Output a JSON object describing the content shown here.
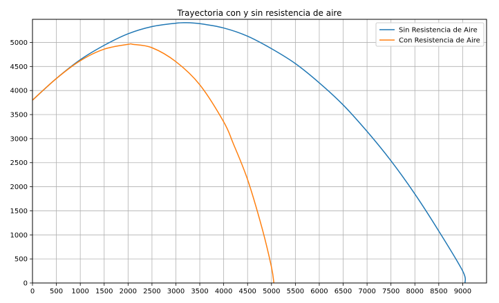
{
  "chart_data": {
    "type": "line",
    "title": "Trayectoria con y sin resistencia de aire",
    "xlabel": "",
    "ylabel": "",
    "xlim": [
      0,
      9500
    ],
    "ylim": [
      0,
      5480
    ],
    "x_ticks": [
      0,
      500,
      1000,
      1500,
      2000,
      2500,
      3000,
      3500,
      4000,
      4500,
      5000,
      5500,
      6000,
      6500,
      7000,
      7500,
      8000,
      8500,
      9000
    ],
    "y_ticks": [
      0,
      500,
      1000,
      1500,
      2000,
      2500,
      3000,
      3500,
      4000,
      4500,
      5000
    ],
    "grid": true,
    "legend_position": "upper right",
    "series": [
      {
        "name": "Sin Resistencia de Aire",
        "color": "#1f77b4",
        "x": [
          0,
          500,
          1000,
          1500,
          2000,
          2500,
          3000,
          3200,
          3500,
          4000,
          4500,
          5000,
          5500,
          6000,
          6500,
          7000,
          7500,
          8000,
          8500,
          9000,
          9050
        ],
        "y": [
          3800,
          4250,
          4640,
          4940,
          5180,
          5330,
          5400,
          5410,
          5390,
          5300,
          5130,
          4870,
          4560,
          4160,
          3700,
          3150,
          2540,
          1850,
          1080,
          250,
          0
        ]
      },
      {
        "name": "Con Resistencia de Aire",
        "color": "#ff7f0e",
        "x": [
          0,
          500,
          1000,
          1500,
          2000,
          2100,
          2500,
          3000,
          3500,
          4000,
          4200,
          4500,
          4800,
          5000,
          5050
        ],
        "y": [
          3800,
          4250,
          4620,
          4860,
          4960,
          4960,
          4890,
          4600,
          4120,
          3350,
          2900,
          2150,
          1150,
          330,
          0
        ]
      }
    ]
  }
}
